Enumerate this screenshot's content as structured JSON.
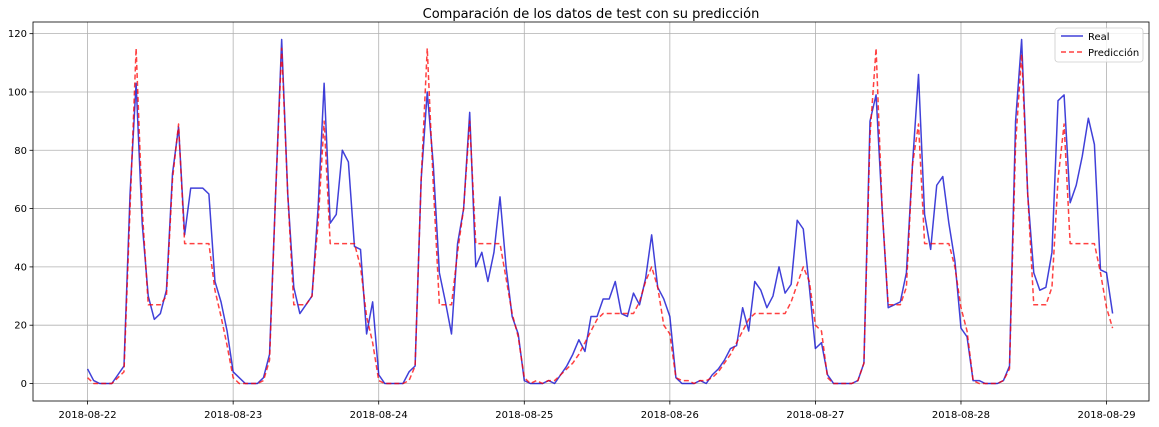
{
  "chart_data": {
    "type": "line",
    "title": "Comparación de los datos de test con su predicción",
    "xlabel": "",
    "ylabel": "",
    "x_start": "2018-08-22 00:00",
    "x_step_hours": 1,
    "xlim": [
      "2018-08-21 15:00",
      "2018-08-29 07:00"
    ],
    "ylim": [
      -6,
      124
    ],
    "x_ticks": [
      "2018-08-22",
      "2018-08-23",
      "2018-08-24",
      "2018-08-25",
      "2018-08-26",
      "2018-08-27",
      "2018-08-28",
      "2018-08-29"
    ],
    "y_ticks": [
      0,
      20,
      40,
      60,
      80,
      100,
      120
    ],
    "grid": true,
    "legend_position": "top-right",
    "series": [
      {
        "name": "Real",
        "color": "#0000cc",
        "style": "solid",
        "values": [
          5,
          1,
          0,
          0,
          0,
          3,
          6,
          65,
          103,
          55,
          30,
          22,
          24,
          32,
          72,
          88,
          51,
          67,
          67,
          67,
          65,
          35,
          28,
          18,
          4,
          2,
          0,
          0,
          0,
          2,
          10,
          65,
          118,
          65,
          33,
          24,
          27,
          30,
          60,
          103,
          55,
          58,
          80,
          76,
          47,
          46,
          17,
          28,
          3,
          0,
          0,
          0,
          0,
          4,
          6,
          70,
          100,
          75,
          38,
          28,
          17,
          48,
          60,
          93,
          40,
          45,
          35,
          45,
          64,
          40,
          23,
          17,
          1,
          0,
          0,
          0,
          1,
          0,
          3,
          6,
          10,
          15,
          11,
          23,
          23,
          29,
          29,
          35,
          24,
          23,
          31,
          27,
          36,
          51,
          33,
          29,
          23,
          2,
          0,
          0,
          0,
          1,
          0,
          3,
          5,
          8,
          12,
          13,
          26,
          18,
          35,
          32,
          26,
          30,
          40,
          31,
          34,
          56,
          53,
          33,
          12,
          14,
          3,
          0,
          0,
          0,
          0,
          1,
          7,
          90,
          99,
          60,
          26,
          27,
          28,
          38,
          75,
          106,
          58,
          46,
          68,
          71,
          55,
          42,
          19,
          16,
          1,
          1,
          0,
          0,
          0,
          1,
          6,
          90,
          118,
          65,
          38,
          32,
          33,
          45,
          97,
          99,
          62,
          68,
          78,
          91,
          82,
          39,
          38,
          24
        ]
      },
      {
        "name": "Predicción",
        "color": "#ff0000",
        "style": "dashed",
        "values": [
          2,
          0,
          0,
          0,
          0,
          2,
          4,
          60,
          115,
          60,
          27,
          27,
          27,
          30,
          70,
          89,
          48,
          48,
          48,
          48,
          48,
          32,
          23,
          13,
          2,
          0,
          0,
          0,
          0,
          1,
          8,
          65,
          115,
          65,
          27,
          27,
          27,
          30,
          55,
          90,
          48,
          48,
          48,
          48,
          48,
          40,
          23,
          14,
          1,
          0,
          0,
          0,
          0,
          1,
          6,
          70,
          115,
          68,
          27,
          27,
          27,
          45,
          60,
          90,
          48,
          48,
          48,
          48,
          48,
          36,
          24,
          16,
          2,
          0,
          1,
          0,
          1,
          1,
          3,
          5,
          7,
          10,
          14,
          18,
          22,
          24,
          24,
          24,
          24,
          24,
          24,
          28,
          35,
          40,
          33,
          20,
          17,
          2,
          1,
          1,
          0,
          1,
          1,
          2,
          4,
          7,
          10,
          14,
          18,
          22,
          24,
          24,
          24,
          24,
          24,
          24,
          28,
          34,
          40,
          35,
          20,
          18,
          2,
          0,
          0,
          0,
          0,
          1,
          7,
          85,
          115,
          60,
          27,
          27,
          27,
          33,
          75,
          89,
          48,
          48,
          48,
          48,
          48,
          40,
          26,
          18,
          1,
          0,
          0,
          0,
          0,
          1,
          5,
          82,
          113,
          65,
          27,
          27,
          27,
          33,
          70,
          89,
          48,
          48,
          48,
          48,
          48,
          38,
          26,
          19
        ]
      }
    ]
  }
}
